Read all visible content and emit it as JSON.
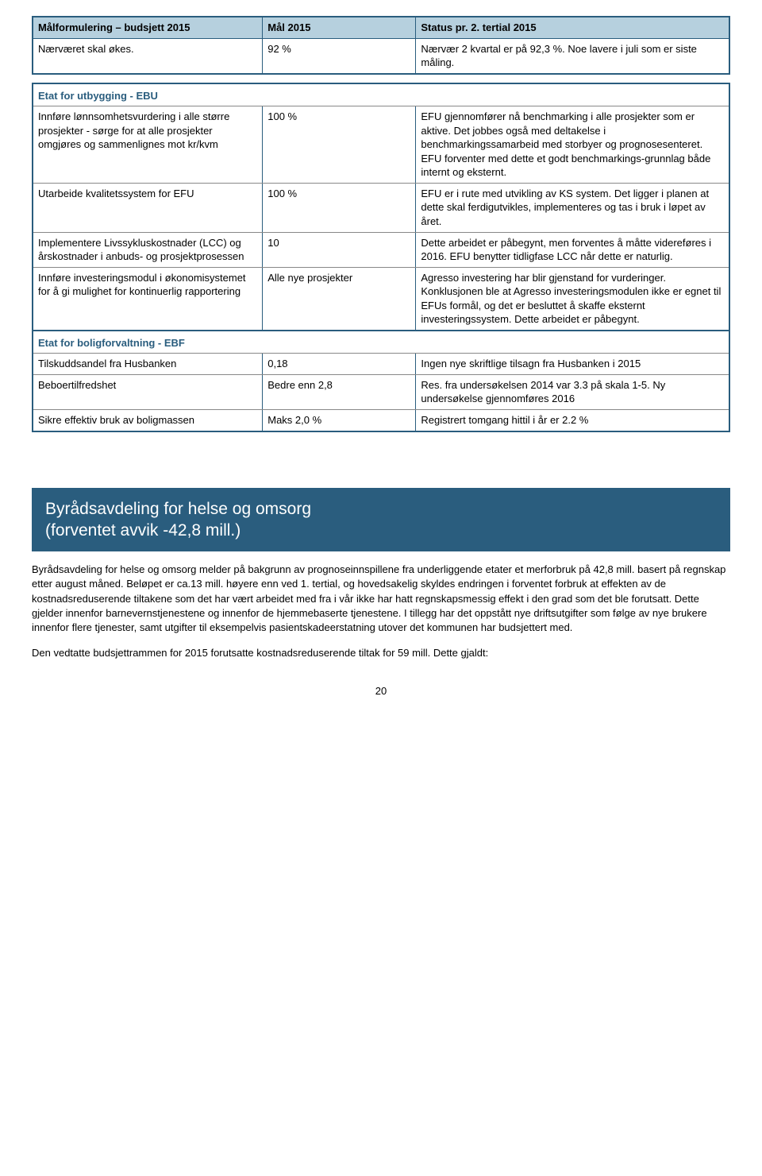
{
  "table1": {
    "header": {
      "c1": "Målformulering – budsjett 2015",
      "c2": "Mål 2015",
      "c3": "Status pr. 2. tertial 2015"
    },
    "row": {
      "c1": "Nærværet skal økes.",
      "c2": "92 %",
      "c3": "Nærvær 2 kvartal er på 92,3 %. Noe lavere i juli som er siste måling."
    }
  },
  "table2": {
    "section1": "Etat for utbygging - EBU",
    "rows1": [
      {
        "c1": "Innføre lønnsomhetsvurdering i alle større prosjekter - sørge for at alle prosjekter omgjøres og sammenlignes mot kr/kvm",
        "c2": "100 %",
        "c3": "EFU gjennomfører nå benchmarking i alle prosjekter som er aktive. Det jobbes også med deltakelse i benchmarkingssamarbeid med storbyer og prognosesenteret. EFU forventer med dette et godt benchmarkings-grunnlag både internt og eksternt."
      },
      {
        "c1": "Utarbeide kvalitetssystem for EFU",
        "c2": "100 %",
        "c3": "EFU er i rute med utvikling av KS system. Det ligger i planen at dette skal ferdigutvikles, implementeres og tas i bruk i løpet av året."
      },
      {
        "c1": "Implementere Livssykluskostnader (LCC) og årskostnader i anbuds- og prosjektprosessen",
        "c2": "10",
        "c3": "Dette arbeidet er påbegynt, men forventes å måtte videreføres i 2016. EFU benytter tidligfase LCC når dette er naturlig."
      },
      {
        "c1": "Innføre investeringsmodul i økonomisystemet for å gi mulighet for kontinuerlig rapportering",
        "c2": "Alle nye prosjekter",
        "c3": "Agresso investering har blir gjenstand for vurderinger. Konklusjonen ble at Agresso investeringsmodulen ikke er egnet til EFUs formål, og det er besluttet å skaffe eksternt investeringssystem. Dette arbeidet er påbegynt."
      }
    ],
    "section2": "Etat for boligforvaltning - EBF",
    "rows2": [
      {
        "c1": "Tilskuddsandel fra Husbanken",
        "c2": "0,18",
        "c3": "Ingen nye skriftlige tilsagn fra Husbanken i 2015"
      },
      {
        "c1": "Beboertilfredshet",
        "c2": "Bedre enn 2,8",
        "c3": "Res. fra undersøkelsen 2014 var 3.3 på skala 1-5. Ny undersøkelse gjennomføres 2016"
      },
      {
        "c1": "Sikre effektiv bruk av boligmassen",
        "c2": "Maks 2,0 %",
        "c3": "Registrert tomgang hittil i år er 2.2 %"
      }
    ]
  },
  "banner": {
    "line1": "Byrådsavdeling for helse og omsorg",
    "line2": "(forventet avvik -42,8 mill.)"
  },
  "para1": "Byrådsavdeling for helse og omsorg melder på bakgrunn av prognoseinnspillene fra underliggende etater et merforbruk på 42,8 mill. basert på regnskap etter august måned. Beløpet er ca.13 mill. høyere enn ved 1. tertial, og hovedsakelig skyldes endringen i forventet forbruk at effekten av de kostnadsreduserende tiltakene som det har vært arbeidet med fra i vår ikke har hatt regnskapsmessig effekt i den grad som det ble forutsatt. Dette gjelder innenfor barnevernstjenestene og innenfor de hjemmebaserte tjenestene. I tillegg har det oppstått nye driftsutgifter som følge av nye brukere innenfor flere tjenester, samt utgifter til eksempelvis pasientskadeerstatning utover det kommunen har budsjettert med.",
  "para2": "Den vedtatte budsjettrammen for 2015 forutsatte kostnadsreduserende tiltak for 59 mill. Dette gjaldt:",
  "pageno": "20",
  "colors": {
    "headerBg": "#b6d0de",
    "bannerBg": "#2a5d7e",
    "sectionText": "#2a5d7e",
    "border": "#2a5d7e"
  }
}
